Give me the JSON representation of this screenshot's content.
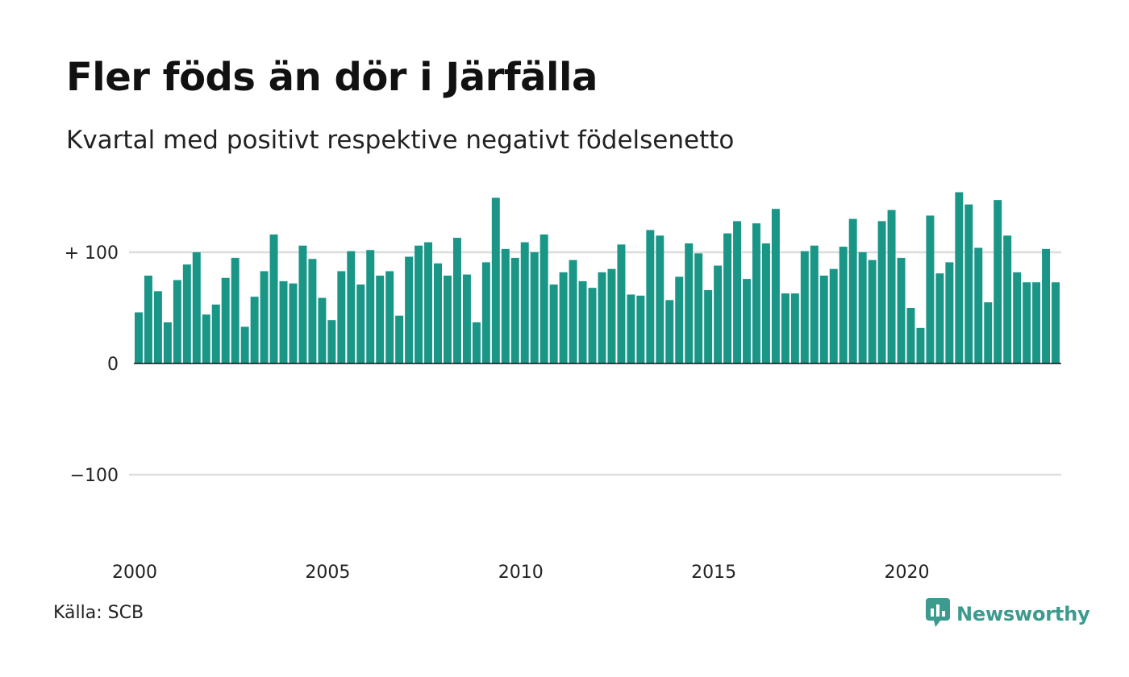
{
  "title": "Fler föds än dör i Järfälla",
  "subtitle": "Kvartal med positivt respektive negativt födelsenetto",
  "source": "Källa: SCB",
  "brand": {
    "name": "Newsworthy",
    "color": "#3c9a8e",
    "icon": "newsworthy-logo-icon"
  },
  "colors": {
    "bar": "#1a9687",
    "grid": "#dddddd",
    "zero_line": "#111111"
  },
  "chart_data": {
    "type": "bar",
    "ylim": [
      -160,
      160
    ],
    "y_ticks": [
      {
        "value": 100,
        "label": "+ 100"
      },
      {
        "value": 0,
        "label": "0"
      },
      {
        "value": -100,
        "label": "−100"
      }
    ],
    "x_ticks": [
      {
        "value": 2000,
        "label": "2000"
      },
      {
        "value": 2005,
        "label": "2005"
      },
      {
        "value": 2010,
        "label": "2010"
      },
      {
        "value": 2015,
        "label": "2015"
      },
      {
        "value": 2020,
        "label": "2020"
      }
    ],
    "x_start": "2000 Q1",
    "x_end": "2023 Q4",
    "grid": true,
    "values": [
      46,
      79,
      65,
      37,
      75,
      89,
      100,
      44,
      53,
      77,
      95,
      33,
      60,
      83,
      116,
      74,
      72,
      106,
      94,
      59,
      39,
      83,
      101,
      71,
      102,
      79,
      83,
      43,
      96,
      106,
      109,
      90,
      79,
      113,
      80,
      37,
      91,
      149,
      103,
      95,
      109,
      100,
      116,
      71,
      82,
      93,
      74,
      68,
      82,
      85,
      107,
      62,
      61,
      120,
      115,
      57,
      78,
      108,
      99,
      66,
      88,
      117,
      128,
      76,
      126,
      108,
      139,
      63,
      63,
      101,
      106,
      79,
      85,
      105,
      130,
      100,
      93,
      128,
      138,
      95,
      50,
      32,
      133,
      81,
      91,
      154,
      143,
      104,
      55,
      147,
      115,
      82,
      73,
      73,
      103,
      73
    ]
  }
}
